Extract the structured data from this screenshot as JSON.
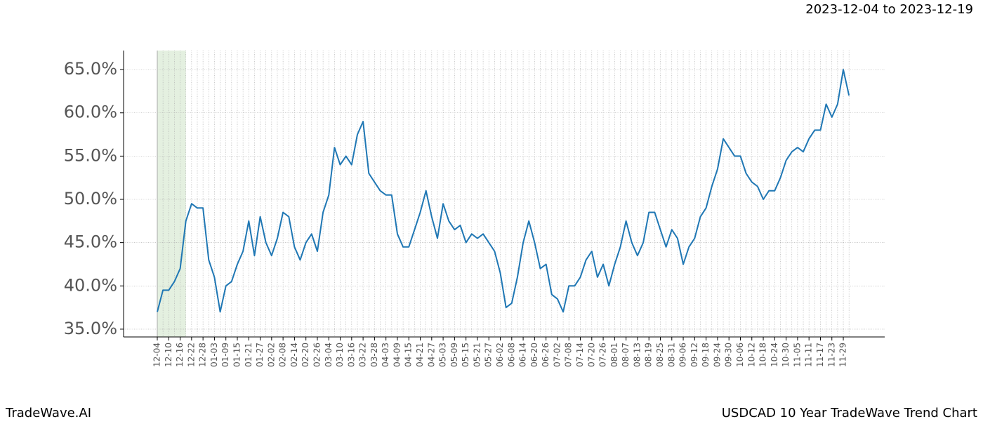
{
  "chart_data": {
    "type": "line",
    "title": "2023-12-04 to 2023-12-19",
    "footer_left": "TradeWave.AI",
    "footer_right": "USDCAD 10 Year TradeWave Trend Chart",
    "categories": [
      "12-04",
      null,
      "12-10",
      null,
      "12-16",
      null,
      "12-22",
      null,
      "12-28",
      null,
      "01-03",
      null,
      "01-09",
      null,
      "01-15",
      null,
      "01-21",
      null,
      "01-27",
      null,
      "02-02",
      null,
      "02-08",
      null,
      "02-14",
      null,
      "02-20",
      null,
      "02-26",
      null,
      "03-04",
      null,
      "03-10",
      null,
      "03-16",
      null,
      "03-22",
      null,
      "03-28",
      null,
      "04-03",
      null,
      "04-09",
      null,
      "04-15",
      null,
      "04-21",
      null,
      "04-27",
      null,
      "05-03",
      null,
      "05-09",
      null,
      "05-15",
      null,
      "05-21",
      null,
      "05-27",
      null,
      "06-02",
      null,
      "06-08",
      null,
      "06-14",
      null,
      "06-20",
      null,
      "06-26",
      null,
      "07-02",
      null,
      "07-08",
      null,
      "07-14",
      null,
      "07-20",
      null,
      "07-26",
      null,
      "08-01",
      null,
      "08-07",
      null,
      "08-13",
      null,
      "08-19",
      null,
      "08-25",
      null,
      "08-31",
      null,
      "09-06",
      null,
      "09-12",
      null,
      "09-18",
      null,
      "09-24",
      null,
      "09-30",
      null,
      "10-06",
      null,
      "10-12",
      null,
      "10-18",
      null,
      "10-24",
      null,
      "10-30",
      null,
      "11-05",
      null,
      "11-11",
      null,
      "11-17",
      null,
      "11-23",
      null,
      "11-29",
      null
    ],
    "values": [
      37,
      39.5,
      39.5,
      40.5,
      42,
      47.5,
      49.5,
      49,
      49,
      43,
      41,
      37,
      40,
      40.5,
      42.5,
      44,
      47.5,
      43.5,
      48,
      45,
      43.5,
      45.5,
      48.5,
      48,
      44.5,
      43,
      45,
      46,
      44,
      48.5,
      50.5,
      56,
      54,
      55,
      54,
      57.5,
      59,
      53,
      52,
      51,
      50.5,
      50.5,
      46,
      44.5,
      44.5,
      46.5,
      48.5,
      51,
      48,
      45.5,
      49.5,
      47.5,
      46.5,
      47,
      45,
      46,
      45.5,
      46,
      45,
      44,
      41.5,
      37.5,
      38,
      41,
      45,
      47.5,
      45,
      42,
      42.5,
      39,
      38.5,
      37,
      40,
      40,
      41,
      43,
      44,
      41,
      42.5,
      40,
      42.5,
      44.5,
      47.5,
      45,
      43.5,
      45,
      48.5,
      48.5,
      46.5,
      44.5,
      46.5,
      45.5,
      42.5,
      44.5,
      45.5,
      48,
      49,
      51.5,
      53.5,
      57,
      56,
      55,
      55,
      53,
      52,
      51.5,
      50,
      51,
      51,
      52.5,
      54.5,
      55.5,
      56,
      55.5,
      57,
      58,
      58,
      61,
      59.5,
      61,
      65,
      62
    ],
    "color": "#1f77b4",
    "ylim": [
      34.1,
      67.2
    ],
    "yticks": [
      {
        "value": 35,
        "label": "35.0%"
      },
      {
        "value": 40,
        "label": "40.0%"
      },
      {
        "value": 45,
        "label": "45.0%"
      },
      {
        "value": 50,
        "label": "50.0%"
      },
      {
        "value": 55,
        "label": "55.0%"
      },
      {
        "value": 60,
        "label": "60.0%"
      },
      {
        "value": 65,
        "label": "65.0%"
      }
    ],
    "grid": true
  }
}
